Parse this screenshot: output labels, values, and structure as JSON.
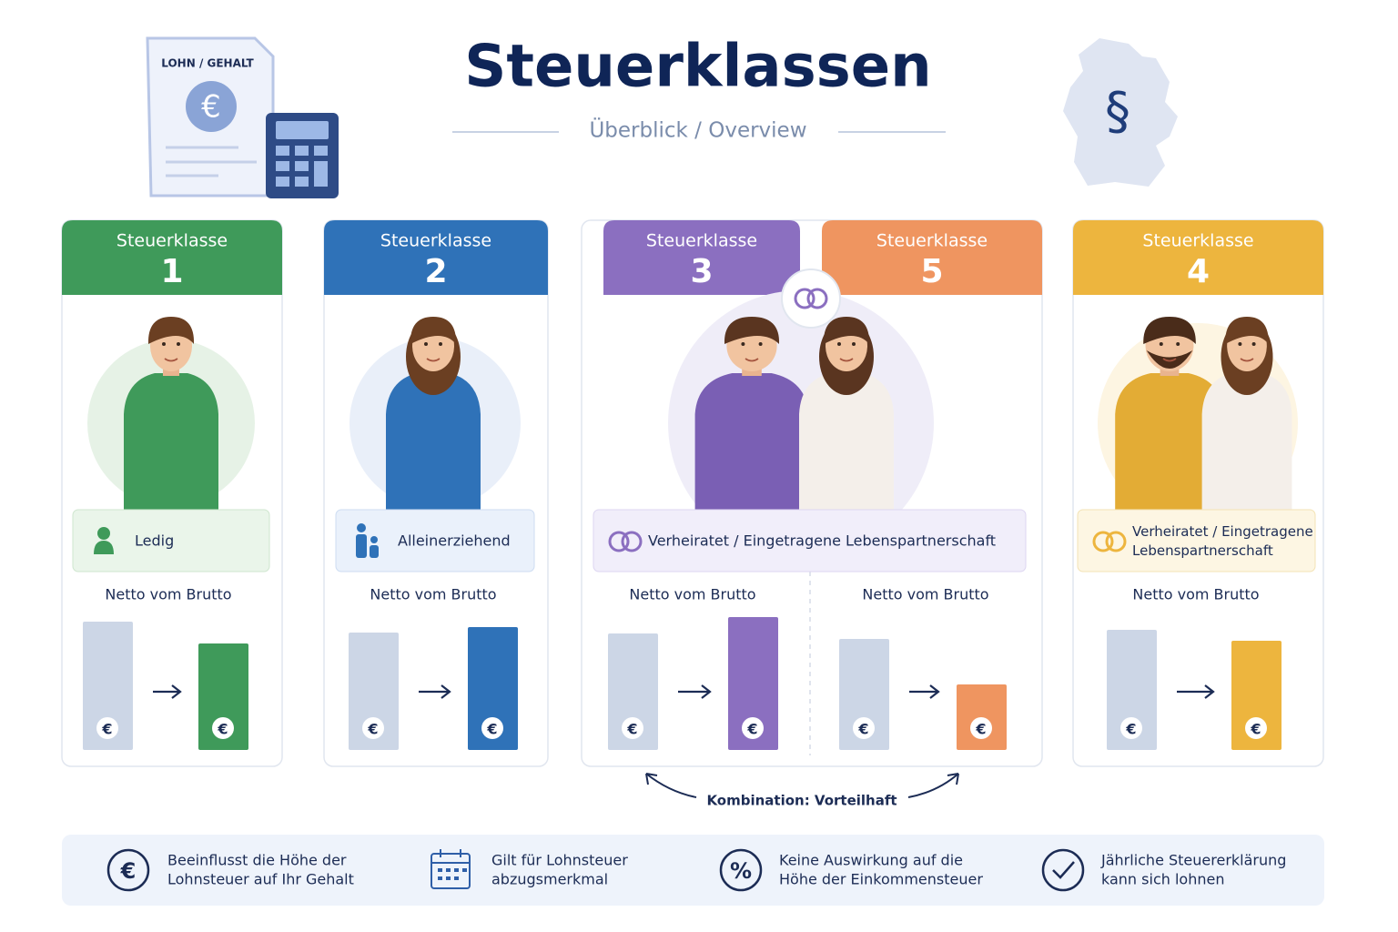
{
  "header": {
    "title": "Steuerklassen",
    "subtitle": "Überblick / Overview",
    "document_label": "LOHN / GEHALT",
    "currency_symbol": "€",
    "paragraph_symbol": "§"
  },
  "cards": [
    {
      "label": "Steuerklasse",
      "number": "1",
      "status_lines": [
        "Ledig"
      ],
      "caption": "Netto vom Brutto"
    },
    {
      "label": "Steuerklasse",
      "number": "2",
      "status_lines": [
        "Alleinerziehend"
      ],
      "caption": "Netto vom Brutto"
    },
    {
      "label": "Steuerklasse",
      "number": "3",
      "status_lines": [
        "Verheiratet / Eingetragene Lebenspartnerschaft"
      ],
      "caption": "Netto vom Brutto"
    },
    {
      "label": "Steuerklasse",
      "number": "5",
      "caption": "Netto vom Brutto"
    },
    {
      "label": "Steuerklasse",
      "number": "4",
      "status_lines": [
        "Verheiratet / Eingetragene",
        "Lebenspartnerschaft"
      ],
      "caption": "Netto vom Brutto"
    }
  ],
  "combination_label": "Kombination: Vorteilhaft",
  "footer": [
    {
      "icon": "€",
      "lines": [
        "Beeinflusst die Höhe der",
        "Lohnsteuer auf Ihr Gehalt"
      ]
    },
    {
      "lines": [
        "Gilt für Lohnsteuer",
        "abzugsmerkmal"
      ]
    },
    {
      "icon": "%",
      "lines": [
        "Keine Auswirkung auf die",
        "Höhe der Einkommensteuer"
      ]
    },
    {
      "lines": [
        "Jährliche Steuererklärung",
        "kann sich lohnen"
      ]
    }
  ]
}
